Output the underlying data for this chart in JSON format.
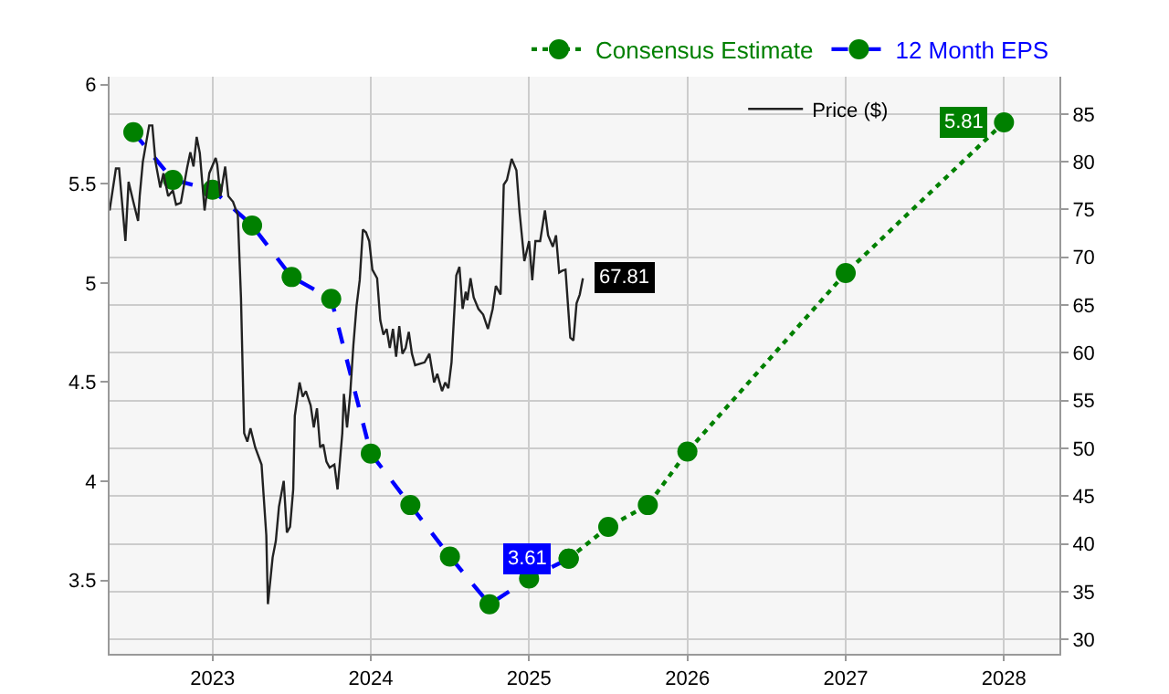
{
  "chart_data": {
    "type": "line",
    "xlim": [
      2022.35,
      2028.35
    ],
    "xticks": [
      2023,
      2024,
      2025,
      2026,
      2027,
      2028
    ],
    "ylim": [
      3.13,
      6.04
    ],
    "yticks": [
      3.5,
      4,
      4.5,
      5,
      5.5,
      6
    ],
    "y2lim": [
      28.5,
      88.9
    ],
    "y2ticks": [
      30,
      35,
      40,
      45,
      50,
      55,
      60,
      65,
      70,
      75,
      80,
      85
    ],
    "grid": true,
    "legend": "top right",
    "series": [
      {
        "name": "Consensus Estimate",
        "color": "#008000",
        "line_style": "dotted",
        "marker": "circle",
        "x": [
          2025.25,
          2025.5,
          2025.75,
          2026,
          2027,
          2028
        ],
        "values": [
          3.61,
          3.77,
          3.88,
          4.15,
          5.05,
          5.81
        ],
        "value_labels": [
          null,
          null,
          null,
          null,
          null,
          "5.81"
        ]
      },
      {
        "name": "12 Month EPS",
        "color": "#0000ff",
        "colors": [
          "#008000",
          "#008000",
          "#008000",
          "#008000",
          "#008000",
          "#008000",
          "#008000",
          "#008000",
          "#008000",
          "#008000",
          "#008000",
          "#008000"
        ],
        "line_style": "dashed",
        "marker": "circle",
        "x": [
          2022.5,
          2022.75,
          2023,
          2023.25,
          2023.5,
          2023.75,
          2024,
          2024.25,
          2024.5,
          2024.75,
          2025,
          2025.25
        ],
        "values": [
          5.76,
          5.52,
          5.47,
          5.29,
          5.03,
          4.92,
          4.14,
          3.88,
          3.62,
          3.38,
          3.51,
          3.61
        ],
        "value_labels": [
          null,
          null,
          null,
          null,
          null,
          null,
          null,
          null,
          null,
          null,
          null,
          "3.61"
        ]
      },
      {
        "name": "Price ($)",
        "color": "#222222",
        "line_style": "solid",
        "marker": "none",
        "axis": "y2",
        "x": [
          2022.35,
          2022.39,
          2022.41,
          2022.45,
          2022.47,
          2022.5,
          2022.53,
          2022.54,
          2022.56,
          2022.6,
          2022.62,
          2022.64,
          2022.67,
          2022.69,
          2022.72,
          2022.75,
          2022.77,
          2022.8,
          2022.84,
          2022.86,
          2022.88,
          2022.9,
          2022.92,
          2022.95,
          2022.98,
          2023.02,
          2023.03,
          2023.05,
          2023.08,
          2023.1,
          2023.13,
          2023.16,
          2023.18,
          2023.2,
          2023.22,
          2023.24,
          2023.27,
          2023.31,
          2023.34,
          2023.35,
          2023.38,
          2023.4,
          2023.42,
          2023.45,
          2023.47,
          2023.49,
          2023.51,
          2023.52,
          2023.55,
          2023.57,
          2023.59,
          2023.62,
          2023.64,
          2023.66,
          2023.68,
          2023.7,
          2023.72,
          2023.74,
          2023.77,
          2023.79,
          2023.82,
          2023.83,
          2023.85,
          2023.87,
          2023.89,
          2023.91,
          2023.93,
          2023.95,
          2023.97,
          2023.99,
          2024.01,
          2024.04,
          2024.06,
          2024.08,
          2024.1,
          2024.12,
          2024.14,
          2024.16,
          2024.18,
          2024.2,
          2024.22,
          2024.24,
          2024.26,
          2024.28,
          2024.34,
          2024.37,
          2024.4,
          2024.42,
          2024.45,
          2024.47,
          2024.49,
          2024.51,
          2024.54,
          2024.56,
          2024.58,
          2024.6,
          2024.61,
          2024.63,
          2024.65,
          2024.68,
          2024.71,
          2024.74,
          2024.77,
          2024.79,
          2024.82,
          2024.84,
          2024.86,
          2024.89,
          2024.92,
          2024.94,
          2024.97,
          2025.0,
          2025.02,
          2025.04,
          2025.07,
          2025.1,
          2025.12,
          2025.15,
          2025.17,
          2025.19,
          2025.21,
          2025.23,
          2025.26,
          2025.28,
          2025.3,
          2025.32,
          2025.34
        ],
        "values": [
          74.9,
          79.3,
          79.3,
          71.7,
          77.9,
          75.8,
          73.8,
          76.4,
          80.0,
          83.8,
          83.8,
          80.0,
          77.3,
          78.8,
          76.4,
          77.0,
          75.5,
          75.7,
          79.4,
          81.0,
          79.5,
          82.6,
          80.9,
          74.9,
          78.8,
          80.4,
          79.7,
          76.4,
          79.5,
          76.4,
          75.8,
          74.4,
          65.8,
          51.6,
          50.7,
          52.1,
          50.1,
          48.3,
          40.9,
          33.7,
          38.6,
          40.3,
          43.9,
          46.6,
          41.2,
          41.8,
          45.7,
          53.4,
          56.9,
          55.4,
          56.0,
          54.5,
          52.2,
          54.2,
          50.1,
          50.4,
          48.6,
          48.0,
          48.3,
          45.7,
          51.6,
          55.7,
          52.2,
          55.7,
          60.8,
          64.9,
          67.6,
          72.9,
          72.6,
          71.7,
          68.7,
          67.8,
          63.4,
          61.9,
          62.5,
          60.5,
          62.5,
          59.6,
          62.8,
          59.9,
          60.5,
          62.2,
          59.9,
          58.7,
          59.0,
          59.9,
          56.9,
          57.8,
          56.0,
          56.9,
          56.3,
          59.0,
          68.1,
          69.0,
          64.6,
          66.4,
          65.5,
          67.8,
          65.8,
          64.6,
          64.0,
          62.5,
          64.6,
          67.0,
          66.1,
          77.6,
          78.1,
          80.3,
          79.1,
          74.7,
          69.6,
          71.7,
          67.6,
          71.7,
          71.7,
          74.9,
          72.3,
          71.1,
          72.3,
          68.4,
          68.6,
          68.7,
          61.6,
          61.3,
          65.2,
          66.1,
          67.81
        ],
        "value_labels": [
          null,
          null,
          null,
          null,
          null,
          null,
          null,
          null,
          null,
          null,
          null,
          null,
          null,
          null,
          null,
          null,
          null,
          null,
          null,
          null,
          null,
          null,
          null,
          null,
          null,
          null,
          null,
          null,
          null,
          null,
          null,
          null,
          null,
          null,
          null,
          null,
          null,
          null,
          null,
          null,
          null,
          null,
          null,
          null,
          null,
          null,
          null,
          null,
          null,
          null,
          null,
          null,
          null,
          null,
          null,
          null,
          null,
          null,
          null,
          null,
          null,
          null,
          null,
          null,
          null,
          null,
          null,
          null,
          null,
          null,
          null,
          null,
          null,
          null,
          null,
          null,
          null,
          null,
          null,
          null,
          null,
          null,
          null,
          null,
          null,
          null,
          null,
          null,
          null,
          null,
          null,
          null,
          null,
          null,
          null,
          null,
          null,
          null,
          null,
          null,
          null,
          null,
          null,
          null,
          null,
          null,
          null,
          null,
          null,
          null,
          null,
          null,
          null,
          null,
          null,
          null,
          null,
          null,
          null,
          null,
          null,
          null,
          null,
          null,
          null,
          null,
          "67.81"
        ]
      }
    ]
  }
}
